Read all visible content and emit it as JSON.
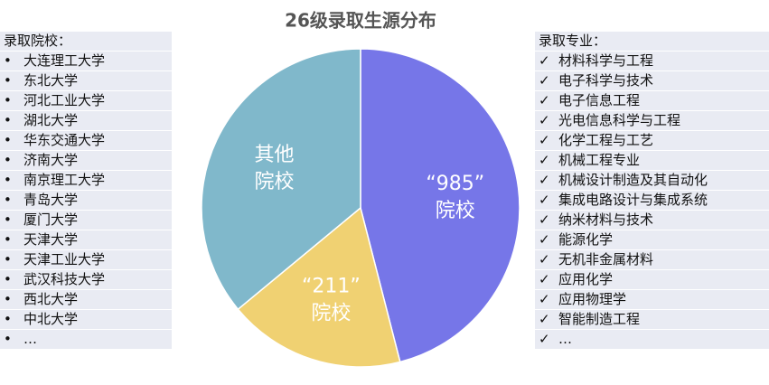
{
  "chart_data": {
    "type": "pie",
    "title": "26级录取生源分布",
    "categories": [
      "“985”\n院校",
      "“211”\n院校",
      "其他\n院校"
    ],
    "values": [
      46,
      18,
      36
    ],
    "colors": [
      "#7676e8",
      "#f0d172",
      "#80b8cb"
    ]
  },
  "left_list": {
    "title": "录取院校：",
    "bullet": "•",
    "items": [
      "大连理工大学",
      "东北大学",
      "河北工业大学",
      "湖北大学",
      "华东交通大学",
      "济南大学",
      "南京理工大学",
      "青岛大学",
      "厦门大学",
      "天津大学",
      "天津工业大学",
      "武汉科技大学",
      "西北大学",
      "中北大学",
      "…"
    ]
  },
  "right_list": {
    "title": "录取专业：",
    "bullet": "✓",
    "items": [
      "材料科学与工程",
      "电子科学与技术",
      "电子信息工程",
      "光电信息科学与工程",
      "化学工程与工艺",
      "机械工程专业",
      "机械设计制造及其自动化",
      "集成电路设计与集成系统",
      "纳米材料与技术",
      "能源化学",
      "无机非金属材料",
      "应用化学",
      "应用物理学",
      "智能制造工程",
      "…"
    ]
  }
}
